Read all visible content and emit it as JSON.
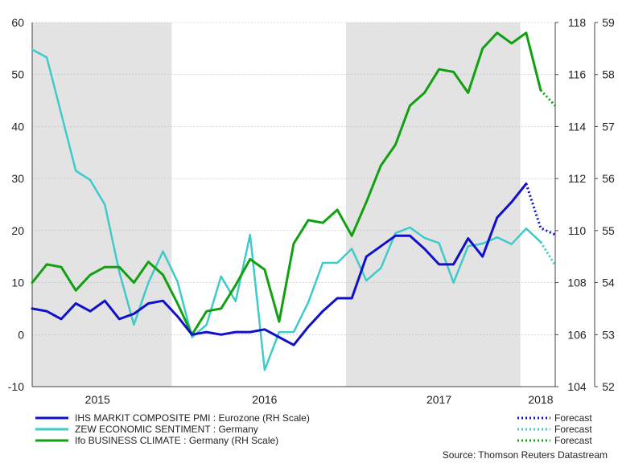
{
  "chart_data": {
    "type": "line",
    "title": "",
    "axes": {
      "left": {
        "min": -10,
        "max": 60,
        "ticks": [
          -10,
          0,
          10,
          20,
          30,
          40,
          50,
          60
        ]
      },
      "right1": {
        "min": 104,
        "max": 118,
        "ticks": [
          104,
          106,
          108,
          110,
          112,
          114,
          116,
          118
        ]
      },
      "right2": {
        "min": 52,
        "max": 59,
        "ticks": [
          52,
          53,
          54,
          55,
          56,
          57,
          58,
          59
        ]
      }
    },
    "x_range": [
      0,
      36
    ],
    "year_labels": [
      {
        "label": "2015",
        "x": 4.5
      },
      {
        "label": "2016",
        "x": 16
      },
      {
        "label": "2017",
        "x": 28
      },
      {
        "label": "2018",
        "x": 35
      }
    ],
    "shaded_periods": [
      [
        0,
        9.6
      ],
      [
        21.6,
        33.6
      ]
    ],
    "series": [
      {
        "name": "IHS MARKIT COMPOSITE PMI : Eurozone (RH Scale)",
        "axis": "right2",
        "color": "#1010c8",
        "key": "pmi",
        "values": [
          [
            0,
            53.5
          ],
          [
            1,
            53.45
          ],
          [
            2,
            53.3
          ],
          [
            3,
            53.6
          ],
          [
            4,
            53.45
          ],
          [
            5,
            53.65
          ],
          [
            6,
            53.3
          ],
          [
            7,
            53.4
          ],
          [
            8,
            53.6
          ],
          [
            9,
            53.65
          ],
          [
            10,
            53.35
          ],
          [
            11,
            53.0
          ],
          [
            12,
            53.05
          ],
          [
            13,
            53.0
          ],
          [
            14,
            53.05
          ],
          [
            15,
            53.05
          ],
          [
            16,
            53.1
          ],
          [
            17,
            52.95
          ],
          [
            18,
            52.8
          ],
          [
            19,
            53.15
          ],
          [
            20,
            53.45
          ],
          [
            21,
            53.7
          ],
          [
            22,
            53.7
          ],
          [
            23,
            54.5
          ],
          [
            24,
            54.7
          ],
          [
            25,
            54.9
          ],
          [
            26,
            54.9
          ],
          [
            27,
            54.65
          ],
          [
            28,
            54.35
          ],
          [
            29,
            54.35
          ],
          [
            30,
            54.85
          ],
          [
            31,
            54.5
          ],
          [
            32,
            55.25
          ],
          [
            33,
            55.55
          ],
          [
            34,
            55.9
          ]
        ],
        "forecast": [
          [
            34,
            55.9
          ],
          [
            35,
            55.05
          ],
          [
            36,
            54.92
          ]
        ]
      },
      {
        "name": "ZEW ECONOMIC SENTIMENT : Germany",
        "axis": "left",
        "color": "#3fcaca",
        "key": "zew",
        "values": [
          [
            0,
            54.8
          ],
          [
            1,
            53.3
          ],
          [
            2,
            42.5
          ],
          [
            3,
            31.5
          ],
          [
            4,
            29.7
          ],
          [
            5,
            25.0
          ],
          [
            6,
            12.0
          ],
          [
            7,
            1.9
          ],
          [
            8,
            10.0
          ],
          [
            9,
            16.0
          ],
          [
            10,
            10.2
          ],
          [
            11,
            -0.5
          ],
          [
            12,
            1.9
          ],
          [
            13,
            11.2
          ],
          [
            14,
            6.4
          ],
          [
            15,
            19.2
          ],
          [
            16,
            -6.8
          ],
          [
            17,
            0.5
          ],
          [
            18,
            0.5
          ],
          [
            19,
            6.2
          ],
          [
            20,
            13.8
          ],
          [
            21,
            13.8
          ],
          [
            22,
            16.5
          ],
          [
            23,
            10.4
          ],
          [
            24,
            12.8
          ],
          [
            25,
            19.5
          ],
          [
            26,
            20.6
          ],
          [
            27,
            18.6
          ],
          [
            28,
            17.6
          ],
          [
            29,
            10.0
          ],
          [
            30,
            17.0
          ],
          [
            31,
            17.5
          ],
          [
            32,
            18.7
          ],
          [
            33,
            17.4
          ],
          [
            34,
            20.4
          ],
          [
            35,
            17.8
          ]
        ],
        "forecast": [
          [
            35,
            17.8
          ],
          [
            36,
            13.3
          ]
        ]
      },
      {
        "name": "Ifo BUSINESS CLIMATE : Germany (RH Scale)",
        "axis": "right1",
        "color": "#10a010",
        "key": "ifo",
        "values": [
          [
            0,
            108.0
          ],
          [
            1,
            108.7
          ],
          [
            2,
            108.6
          ],
          [
            3,
            107.7
          ],
          [
            4,
            108.3
          ],
          [
            5,
            108.6
          ],
          [
            6,
            108.6
          ],
          [
            7,
            108.0
          ],
          [
            8,
            108.8
          ],
          [
            9,
            108.3
          ],
          [
            10,
            107.2
          ],
          [
            11,
            106.0
          ],
          [
            12,
            106.9
          ],
          [
            13,
            107.0
          ],
          [
            14,
            107.9
          ],
          [
            15,
            108.9
          ],
          [
            16,
            108.5
          ],
          [
            17,
            106.5
          ],
          [
            18,
            109.5
          ],
          [
            19,
            110.4
          ],
          [
            20,
            110.3
          ],
          [
            21,
            110.8
          ],
          [
            22,
            109.8
          ],
          [
            23,
            111.1
          ],
          [
            24,
            112.5
          ],
          [
            25,
            113.3
          ],
          [
            26,
            114.8
          ],
          [
            27,
            115.3
          ],
          [
            28,
            116.2
          ],
          [
            29,
            116.1
          ],
          [
            30,
            115.3
          ],
          [
            31,
            117.0
          ],
          [
            32,
            117.6
          ],
          [
            33,
            117.2
          ],
          [
            34,
            117.6
          ],
          [
            35,
            115.4
          ]
        ],
        "forecast": [
          [
            35,
            115.4
          ],
          [
            36,
            114.8
          ]
        ]
      }
    ],
    "legend": {
      "entries": [
        {
          "key": "pmi",
          "label": "IHS MARKIT COMPOSITE PMI : Eurozone (RH Scale)",
          "forecast_label": "Forecast"
        },
        {
          "key": "zew",
          "label": "ZEW ECONOMIC SENTIMENT : Germany",
          "forecast_label": "Forecast"
        },
        {
          "key": "ifo",
          "label": "Ifo BUSINESS CLIMATE : Germany (RH Scale)",
          "forecast_label": "Forecast"
        }
      ]
    },
    "source": "Source: Thomson Reuters Datastream"
  }
}
